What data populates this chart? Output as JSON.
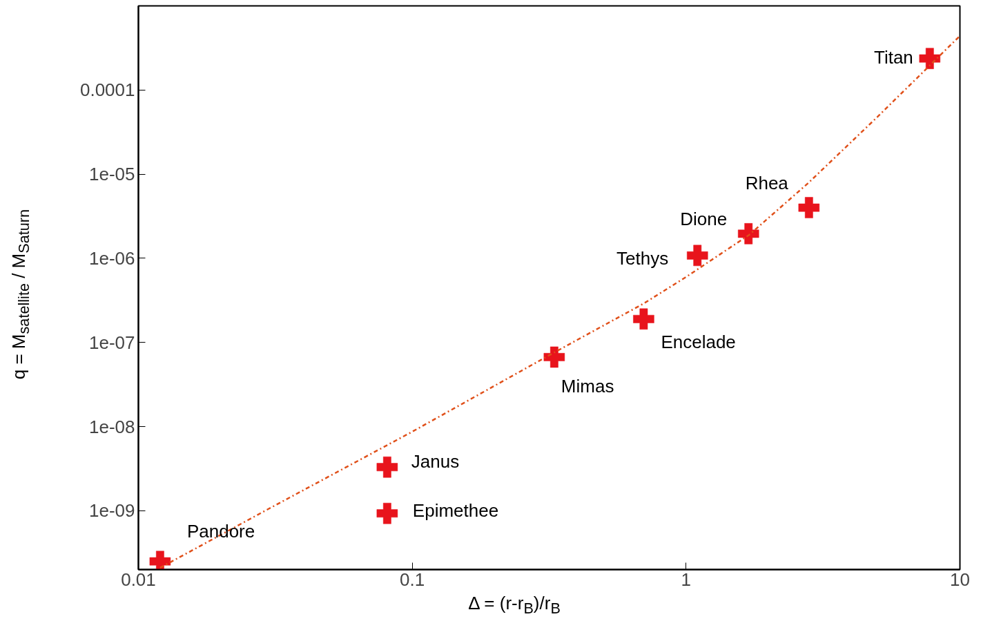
{
  "chart_data": {
    "type": "scatter",
    "xlabel": "Δ = (r-r$_{B}$)/r$_{B}$",
    "ylabel": "q = M$_{satellite}$ / M$_{Saturn}$",
    "log": "xy",
    "grid": false,
    "xlim": [
      0.01,
      10
    ],
    "ylim": [
      2e-10,
      0.001
    ],
    "xticks": [
      0.01,
      0.1,
      1,
      10
    ],
    "yticks": [
      {
        "value": 1e-09,
        "label": "1e-09"
      },
      {
        "value": 1e-08,
        "label": "1e-08"
      },
      {
        "value": 1e-07,
        "label": "1e-07"
      },
      {
        "value": 1e-06,
        "label": "1e-06"
      },
      {
        "value": 1e-05,
        "label": "1e-05"
      },
      {
        "value": 0.0001,
        "label": "0.0001"
      }
    ],
    "series": [
      {
        "color": "#e8141c",
        "marker": "cross",
        "x": [
          0.012,
          0.081,
          0.081,
          0.33,
          0.7,
          1.1,
          1.69,
          2.81,
          7.76
        ],
        "values": [
          2.5e-10,
          3.3e-09,
          9.3e-10,
          6.7e-08,
          1.9e-07,
          1.08e-06,
          1.96e-06,
          4e-06,
          0.000237
        ]
      },
      {
        "type": "line",
        "color": "#e0501a",
        "line_style": "dashdot",
        "x": [
          0.012,
          0.03,
          0.1,
          0.33,
          0.7,
          1,
          1.7,
          2.8,
          5,
          10
        ],
        "values": [
          2.1e-10,
          1.06e-09,
          8.7e-09,
          7.6e-08,
          2.9e-07,
          6e-07,
          1.9e-06,
          7.9e-06,
          4.8e-05,
          0.00044
        ]
      }
    ],
    "annotations": [
      {
        "text": "Pandore",
        "x": 0.012,
        "y": 2.5e-10
      },
      {
        "text": "Janus",
        "x": 0.081,
        "y": 3.3e-09
      },
      {
        "text": "Epimethee",
        "x": 0.081,
        "y": 9.3e-10
      },
      {
        "text": "Mimas",
        "x": 0.33,
        "y": 6.7e-08
      },
      {
        "text": "Encelade",
        "x": 0.7,
        "y": 1.9e-07
      },
      {
        "text": "Tethys",
        "x": 1.1,
        "y": 1.08e-06
      },
      {
        "text": "Dione",
        "x": 1.69,
        "y": 1.96e-06
      },
      {
        "text": "Rhea",
        "x": 2.81,
        "y": 4e-06
      },
      {
        "text": "Titan",
        "x": 7.76,
        "y": 0.000237
      }
    ]
  }
}
